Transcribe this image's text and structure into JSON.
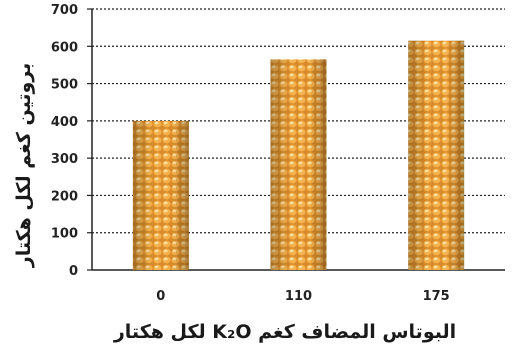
{
  "chart_data": {
    "type": "bar",
    "categories": [
      "0",
      "110",
      "175"
    ],
    "values": [
      400,
      565,
      615
    ],
    "ylim": [
      0,
      700
    ],
    "yticks": [
      "0",
      "100",
      "200",
      "300",
      "400",
      "500",
      "600",
      "700"
    ],
    "xlabel": "البوتاس المضاف كغم K₂O لكل هكتار",
    "ylabel": "بروتين كغم لكل هكتار",
    "grid": true,
    "bar_color": "#e8a43c"
  }
}
